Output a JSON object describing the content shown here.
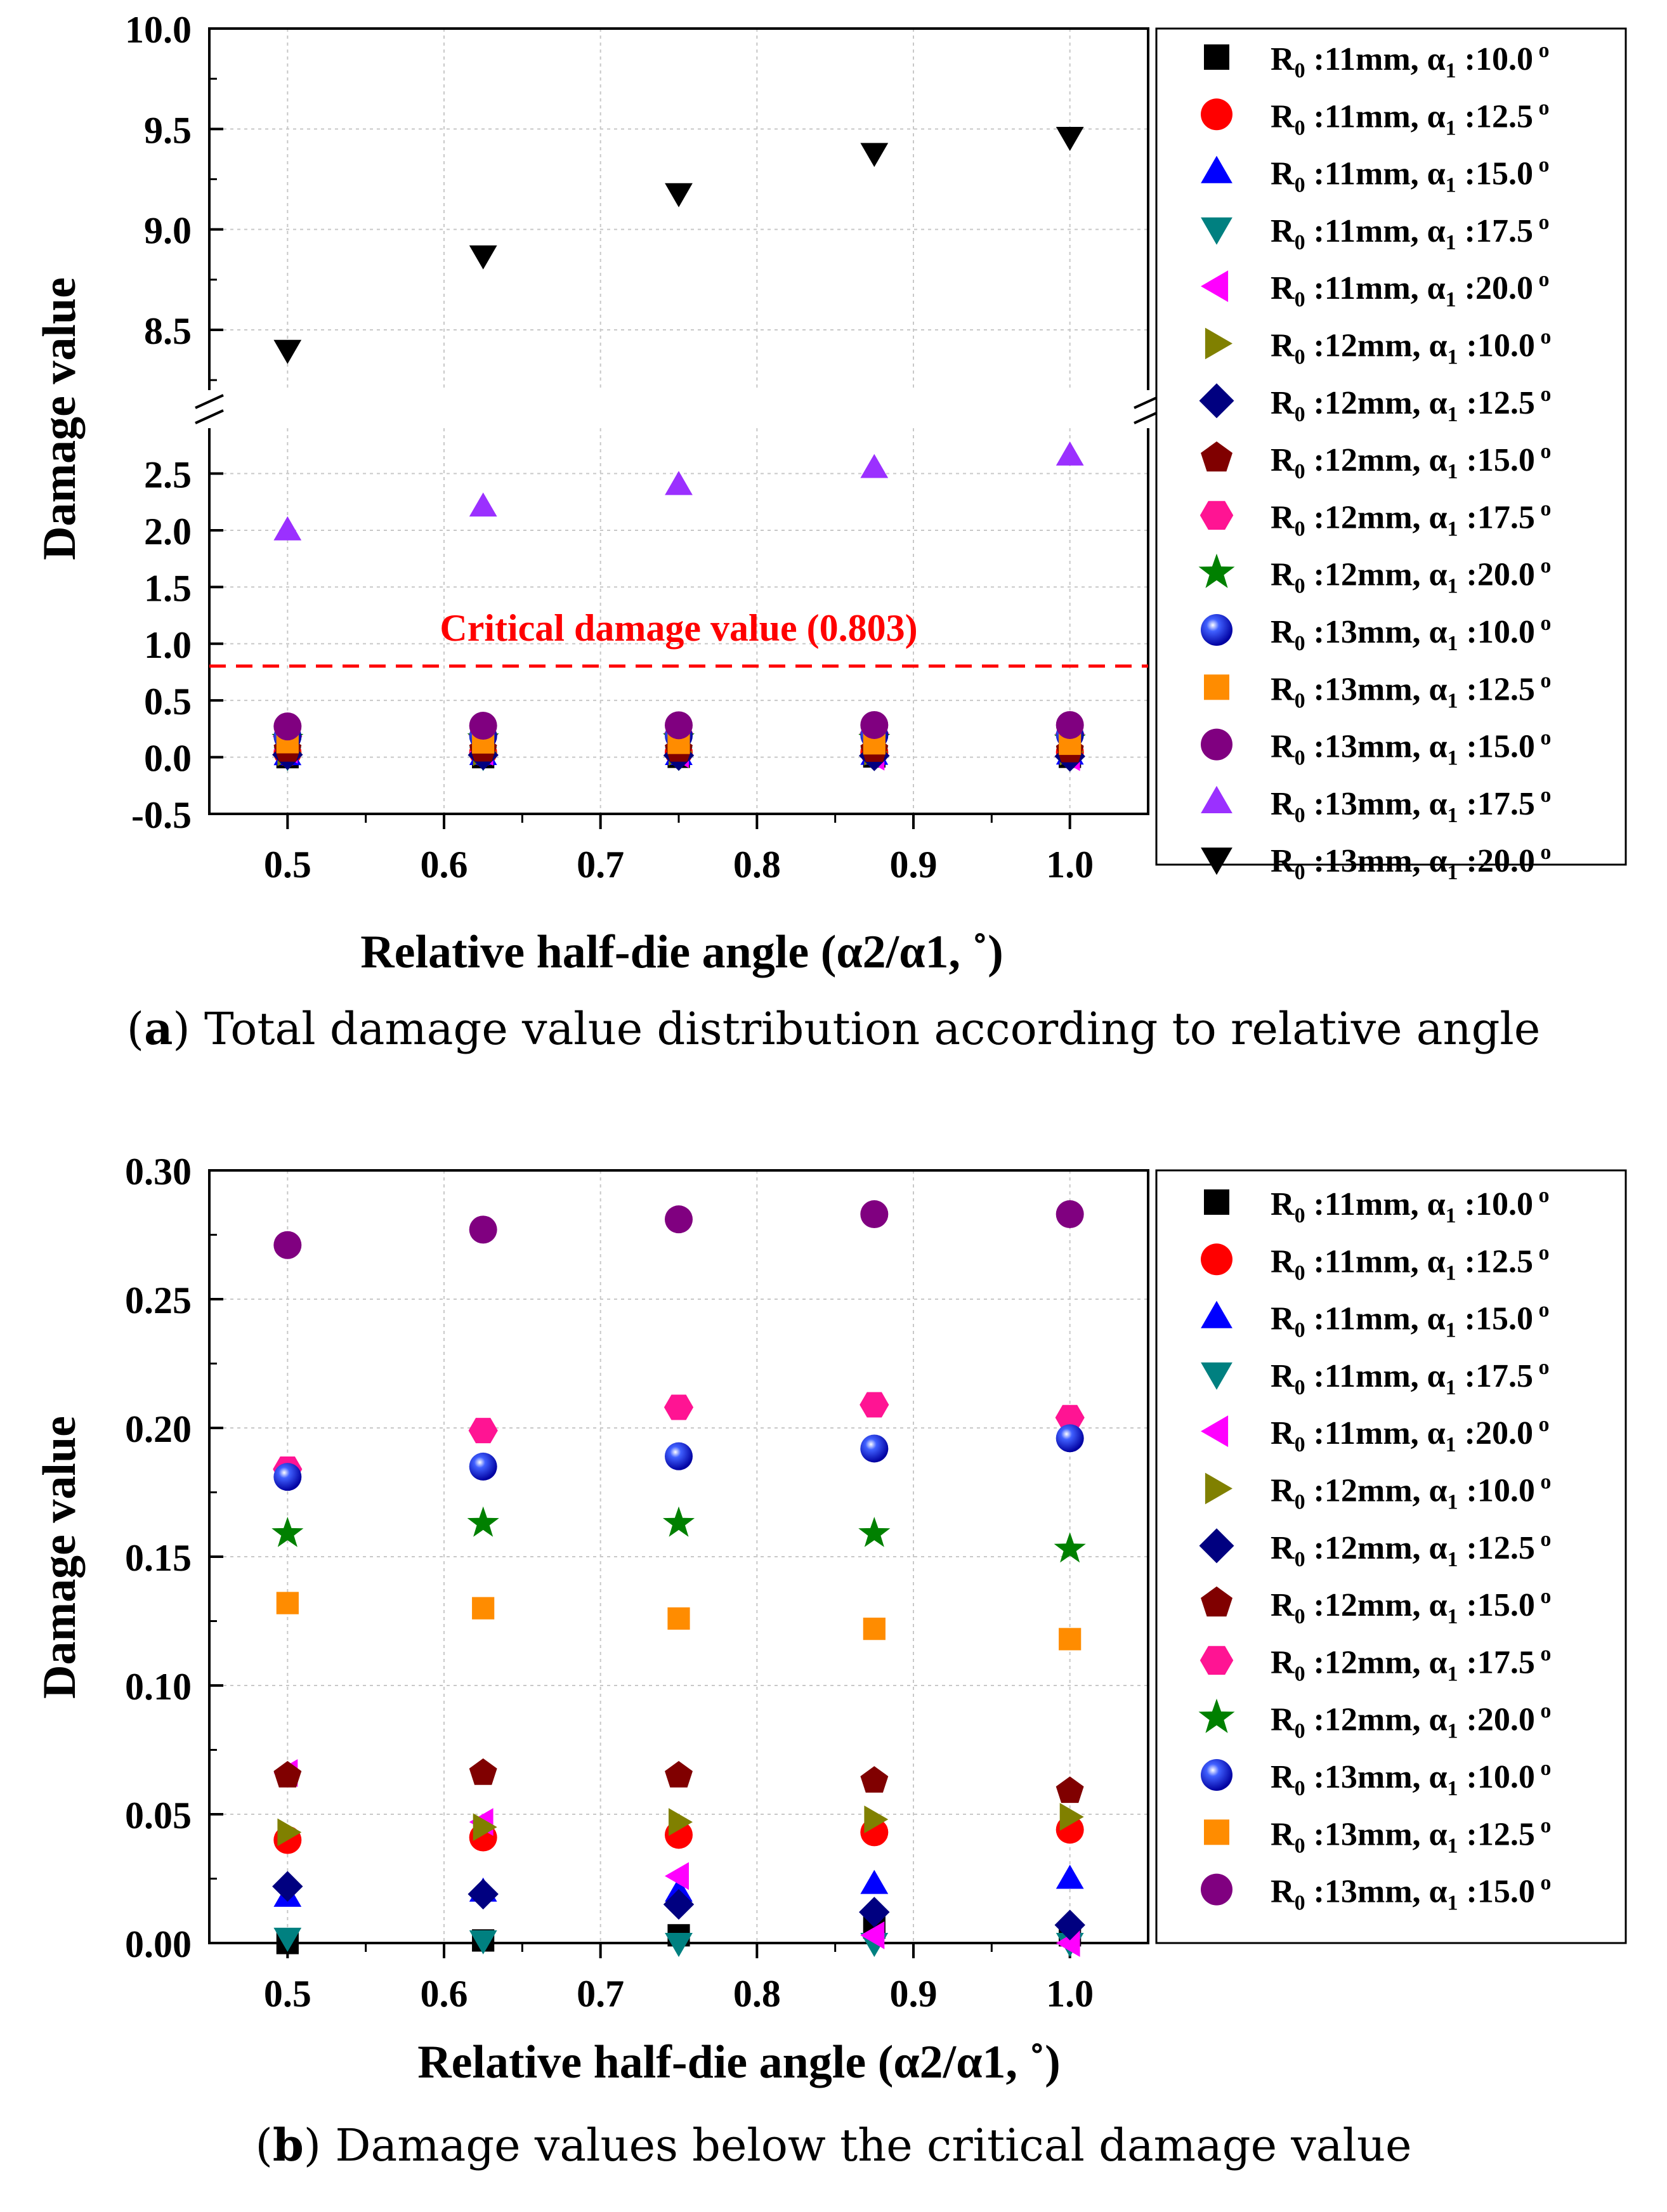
{
  "series_defs": [
    {
      "name": "R0 :11mm, α1 :10.0°",
      "r0": "11mm",
      "alpha": "10.0",
      "marker": "square",
      "color": "#000000"
    },
    {
      "name": "R0 :11mm, α1 :12.5°",
      "r0": "11mm",
      "alpha": "12.5",
      "marker": "circle",
      "color": "#ff0000"
    },
    {
      "name": "R0 :11mm, α1 :15.0°",
      "r0": "11mm",
      "alpha": "15.0",
      "marker": "triangle-up",
      "color": "#0000ff"
    },
    {
      "name": "R0 :11mm, α1 :17.5°",
      "r0": "11mm",
      "alpha": "17.5",
      "marker": "triangle-down",
      "color": "#008080"
    },
    {
      "name": "R0 :11mm, α1 :20.0°",
      "r0": "11mm",
      "alpha": "20.0",
      "marker": "triangle-left",
      "color": "#ff00ff"
    },
    {
      "name": "R0 :12mm, α1 :10.0°",
      "r0": "12mm",
      "alpha": "10.0",
      "marker": "triangle-right",
      "color": "#808000"
    },
    {
      "name": "R0 :12mm, α1 :12.5°",
      "r0": "12mm",
      "alpha": "12.5",
      "marker": "diamond",
      "color": "#000080"
    },
    {
      "name": "R0 :12mm, α1 :15.0°",
      "r0": "12mm",
      "alpha": "15.0",
      "marker": "pentagon",
      "color": "#800000"
    },
    {
      "name": "R0 :12mm, α1 :17.5°",
      "r0": "12mm",
      "alpha": "17.5",
      "marker": "hexagon",
      "color": "#ff1493"
    },
    {
      "name": "R0 :12mm, α1 :20.0°",
      "r0": "12mm",
      "alpha": "20.0",
      "marker": "star",
      "color": "#008000"
    },
    {
      "name": "R0 :13mm, α1 :10.0°",
      "r0": "13mm",
      "alpha": "10.0",
      "marker": "sphere",
      "color": "#0000a0"
    },
    {
      "name": "R0 :13mm, α1 :12.5°",
      "r0": "13mm",
      "alpha": "12.5",
      "marker": "square",
      "color": "#ff8c00"
    },
    {
      "name": "R0 :13mm, α1 :15.0°",
      "r0": "13mm",
      "alpha": "15.0",
      "marker": "circle",
      "color": "#800080"
    },
    {
      "name": "R0 :13mm, α1 :17.5°",
      "r0": "13mm",
      "alpha": "17.5",
      "marker": "triangle-up",
      "color": "#9b30ff"
    },
    {
      "name": "R0 :13mm, α1 :20.0°",
      "r0": "13mm",
      "alpha": "20.0",
      "marker": "triangle-down",
      "color": "#000000"
    }
  ],
  "chart_data": [
    {
      "id": "a",
      "type": "scatter",
      "xlabel": "Relative half-die angle (α2/α1, ˚)",
      "ylabel": "Damage value",
      "x": [
        0.5,
        0.625,
        0.75,
        0.875,
        1.0
      ],
      "xlim": [
        0.45,
        1.05
      ],
      "xticks": [
        0.5,
        0.6,
        0.7,
        0.8,
        0.9,
        1.0
      ],
      "xtick_labels": [
        "0.5",
        "0.6",
        "0.7",
        "0.8",
        "0.9",
        "1.0"
      ],
      "broken_axis": true,
      "upper_ylim": [
        8.2,
        10.0
      ],
      "upper_yticks": [
        8.5,
        9.0,
        9.5,
        10.0
      ],
      "upper_ytick_labels": [
        "8.5",
        "9.0",
        "9.5",
        "10.0"
      ],
      "lower_ylim": [
        -0.5,
        2.9
      ],
      "lower_yticks": [
        -0.5,
        0.0,
        0.5,
        1.0,
        1.5,
        2.0,
        2.5
      ],
      "lower_ytick_labels": [
        "-0.5",
        "0.0",
        "0.5",
        "1.0",
        "1.5",
        "2.0",
        "2.5"
      ],
      "grid": true,
      "legend": "outside-right",
      "reference_line": {
        "value": 0.803,
        "label": "Critical damage value (0.803)",
        "color": "#ff0000",
        "style": "dashed"
      },
      "series": [
        {
          "name": "R0 :11mm, α1 :10.0°",
          "values": [
            0.0,
            0.0,
            0.003,
            0.006,
            0.003
          ]
        },
        {
          "name": "R0 :11mm, α1 :12.5°",
          "values": [
            0.04,
            0.041,
            0.042,
            0.043,
            0.044
          ]
        },
        {
          "name": "R0 :11mm, α1 :15.0°",
          "values": [
            0.018,
            0.02,
            0.02,
            0.022,
            0.024
          ]
        },
        {
          "name": "R0 :11mm, α1 :17.5°",
          "values": [
            0.0,
            0.0,
            0.0,
            0.0,
            0.0
          ]
        },
        {
          "name": "R0 :11mm, α1 :20.0°",
          "values": [
            0.066,
            0.047,
            0.026,
            0.004,
            0.0
          ]
        },
        {
          "name": "R0 :12mm, α1 :10.0°",
          "values": [
            0.043,
            0.045,
            0.047,
            0.048,
            0.049
          ]
        },
        {
          "name": "R0 :12mm, α1 :12.5°",
          "values": [
            0.022,
            0.019,
            0.015,
            0.012,
            0.007
          ]
        },
        {
          "name": "R0 :12mm, α1 :15.0°",
          "values": [
            0.065,
            0.066,
            0.065,
            0.063,
            0.059
          ]
        },
        {
          "name": "R0 :12mm, α1 :17.5°",
          "values": [
            0.184,
            0.199,
            0.208,
            0.209,
            0.204
          ]
        },
        {
          "name": "R0 :12mm, α1 :20.0°",
          "values": [
            0.159,
            0.163,
            0.163,
            0.159,
            0.153
          ]
        },
        {
          "name": "R0 :13mm, α1 :10.0°",
          "values": [
            0.181,
            0.185,
            0.189,
            0.192,
            0.196
          ]
        },
        {
          "name": "R0 :13mm, α1 :12.5°",
          "values": [
            0.132,
            0.13,
            0.126,
            0.122,
            0.118
          ]
        },
        {
          "name": "R0 :13mm, α1 :15.0°",
          "values": [
            0.271,
            0.277,
            0.281,
            0.283,
            0.283
          ]
        },
        {
          "name": "R0 :13mm, α1 :17.5°",
          "values": [
            2.0,
            2.21,
            2.4,
            2.55,
            2.66
          ]
        },
        {
          "name": "R0 :13mm, α1 :20.0°",
          "values": [
            8.4,
            8.87,
            9.18,
            9.38,
            9.46
          ]
        }
      ],
      "caption": {
        "label": "a",
        "text": " Total damage value distribution according to relative angle"
      }
    },
    {
      "id": "b",
      "type": "scatter",
      "xlabel": "Relative half-die angle (α2/α1, ˚)",
      "ylabel": "Damage value",
      "x": [
        0.5,
        0.625,
        0.75,
        0.875,
        1.0
      ],
      "xlim": [
        0.45,
        1.05
      ],
      "xticks": [
        0.5,
        0.6,
        0.7,
        0.8,
        0.9,
        1.0
      ],
      "xtick_labels": [
        "0.5",
        "0.6",
        "0.7",
        "0.8",
        "0.9",
        "1.0"
      ],
      "ylim": [
        0.0,
        0.3
      ],
      "yticks": [
        0.0,
        0.05,
        0.1,
        0.15,
        0.2,
        0.25,
        0.3
      ],
      "ytick_labels": [
        "0.00",
        "0.05",
        "0.10",
        "0.15",
        "0.20",
        "0.25",
        "0.30"
      ],
      "grid": true,
      "legend": "outside-right",
      "series": [
        {
          "name": "R0 :11mm, α1 :10.0°",
          "values": [
            0.0,
            0.001,
            0.003,
            0.006,
            0.003
          ]
        },
        {
          "name": "R0 :11mm, α1 :12.5°",
          "values": [
            0.04,
            0.041,
            0.042,
            0.043,
            0.044
          ]
        },
        {
          "name": "R0 :11mm, α1 :15.0°",
          "values": [
            0.018,
            0.02,
            0.02,
            0.023,
            0.025
          ]
        },
        {
          "name": "R0 :11mm, α1 :17.5°",
          "values": [
            0.002,
            0.001,
            0.0,
            0.0,
            0.0
          ]
        },
        {
          "name": "R0 :11mm, α1 :20.0°",
          "values": [
            0.066,
            0.047,
            0.026,
            0.003,
            0.0
          ]
        },
        {
          "name": "R0 :12mm, α1 :10.0°",
          "values": [
            0.043,
            0.045,
            0.047,
            0.048,
            0.049
          ]
        },
        {
          "name": "R0 :12mm, α1 :12.5°",
          "values": [
            0.022,
            0.019,
            0.015,
            0.012,
            0.007
          ]
        },
        {
          "name": "R0 :12mm, α1 :15.0°",
          "values": [
            0.065,
            0.066,
            0.065,
            0.063,
            0.059
          ]
        },
        {
          "name": "R0 :12mm, α1 :17.5°",
          "values": [
            0.184,
            0.199,
            0.208,
            0.209,
            0.204
          ]
        },
        {
          "name": "R0 :12mm, α1 :20.0°",
          "values": [
            0.159,
            0.163,
            0.163,
            0.159,
            0.153
          ]
        },
        {
          "name": "R0 :13mm, α1 :10.0°",
          "values": [
            0.181,
            0.185,
            0.189,
            0.192,
            0.196
          ]
        },
        {
          "name": "R0 :13mm, α1 :12.5°",
          "values": [
            0.132,
            0.13,
            0.126,
            0.122,
            0.118
          ]
        },
        {
          "name": "R0 :13mm, α1 :15.0°",
          "values": [
            0.271,
            0.277,
            0.281,
            0.283,
            0.283
          ]
        }
      ],
      "caption": {
        "label": "b",
        "text": " Damage values below the critical damage value"
      }
    }
  ]
}
